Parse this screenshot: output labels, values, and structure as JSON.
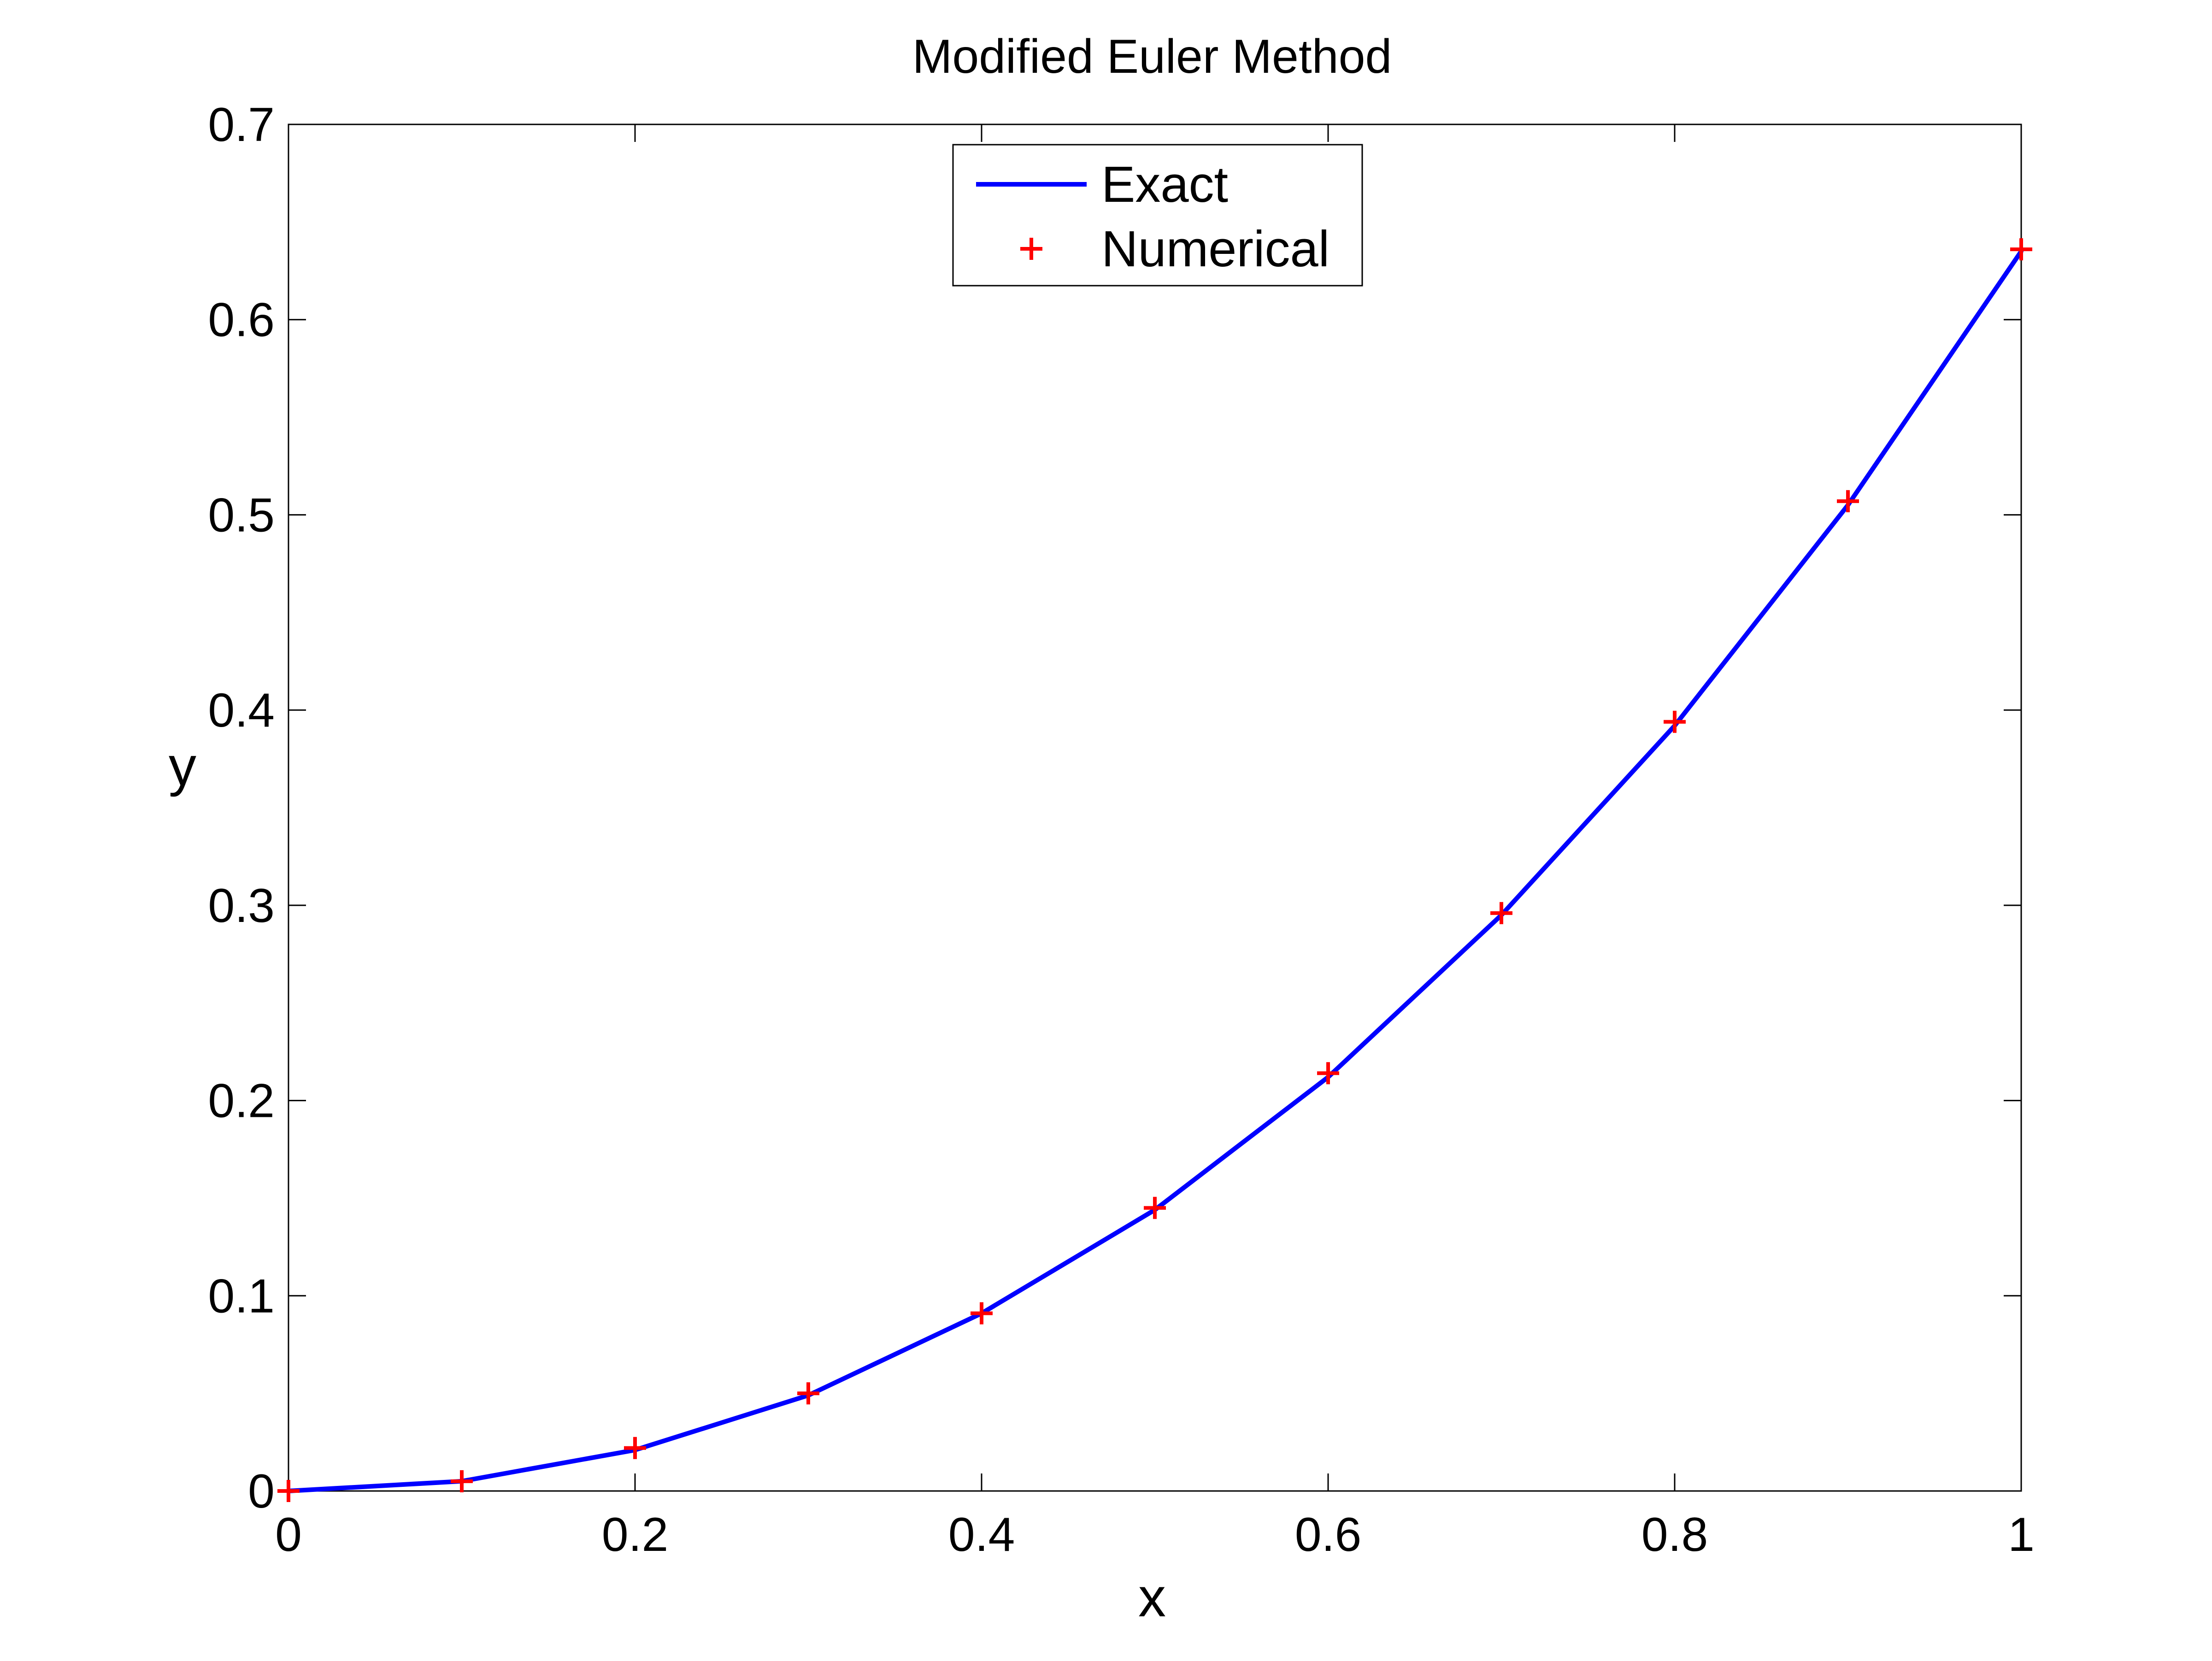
{
  "chart_data": {
    "type": "line",
    "title": "Modified Euler Method",
    "xlabel": "x",
    "ylabel": "y",
    "xlim": [
      0,
      1
    ],
    "ylim": [
      0,
      0.7
    ],
    "grid": false,
    "legend_position": "top-center",
    "x_ticks": [
      0,
      0.2,
      0.4,
      0.6,
      0.8,
      1
    ],
    "x_tick_labels": [
      "0",
      "0.2",
      "0.4",
      "0.6",
      "0.8",
      "1"
    ],
    "y_ticks": [
      0,
      0.1,
      0.2,
      0.3,
      0.4,
      0.5,
      0.6,
      0.7
    ],
    "y_tick_labels": [
      "0",
      "0.1",
      "0.2",
      "0.3",
      "0.4",
      "0.5",
      "0.6",
      "0.7"
    ],
    "series": [
      {
        "name": "Exact",
        "style": "line",
        "color": "#0000ff",
        "x": [
          0,
          0.1,
          0.2,
          0.3,
          0.4,
          0.5,
          0.6,
          0.7,
          0.8,
          0.9,
          1.0
        ],
        "y": [
          0,
          0.005,
          0.021,
          0.049,
          0.091,
          0.144,
          0.212,
          0.295,
          0.392,
          0.505,
          0.635
        ]
      },
      {
        "name": "Numerical",
        "style": "marker",
        "marker": "+",
        "color": "#ff0000",
        "x": [
          0,
          0.1,
          0.2,
          0.3,
          0.4,
          0.5,
          0.6,
          0.7,
          0.8,
          0.9,
          1.0
        ],
        "y": [
          0,
          0.005,
          0.022,
          0.05,
          0.091,
          0.145,
          0.214,
          0.296,
          0.394,
          0.507,
          0.636
        ]
      }
    ]
  }
}
